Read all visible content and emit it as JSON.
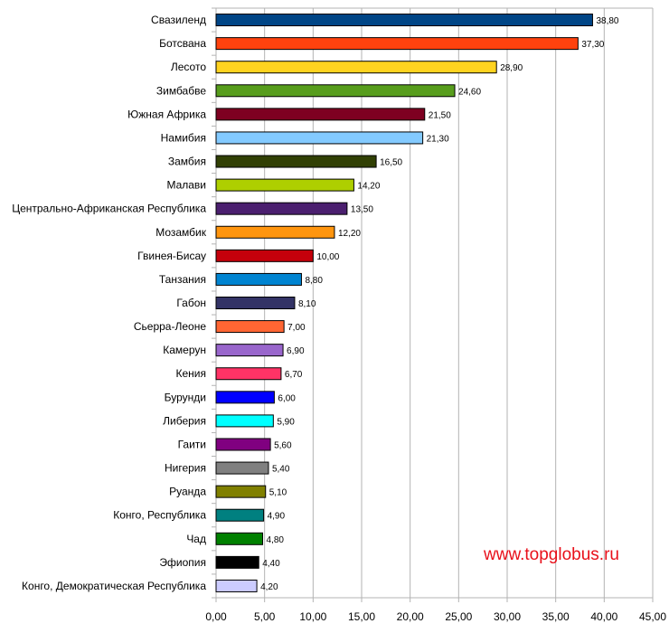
{
  "chart_data": {
    "type": "bar",
    "orientation": "horizontal",
    "title": "",
    "xlabel": "",
    "ylabel": "",
    "xlim": [
      0,
      45
    ],
    "x_ticks": [
      "0,00",
      "5,00",
      "10,00",
      "15,00",
      "20,00",
      "25,00",
      "30,00",
      "35,00",
      "40,00",
      "45,00"
    ],
    "grid": true,
    "categories": [
      "Свазиленд",
      "Ботсвана",
      "Лесото",
      "Зимбабве",
      "Южная Африка",
      "Намибия",
      "Замбия",
      "Малави",
      "Центрально-Африканская Республика",
      "Мозамбик",
      "Гвинея-Бисау",
      "Танзания",
      "Габон",
      "Сьерра-Леоне",
      "Камерун",
      "Кения",
      "Бурунди",
      "Либерия",
      "Гаити",
      "Нигерия",
      "Руанда",
      "Конго, Республика",
      "Чад",
      "Эфиопия",
      "Конго, Демократическая Республика"
    ],
    "values": [
      38.8,
      37.3,
      28.9,
      24.6,
      21.5,
      21.3,
      16.5,
      14.2,
      13.5,
      12.2,
      10.0,
      8.8,
      8.1,
      7.0,
      6.9,
      6.7,
      6.0,
      5.9,
      5.6,
      5.4,
      5.1,
      4.9,
      4.8,
      4.4,
      4.2
    ],
    "value_labels": [
      "38,80",
      "37,30",
      "28,90",
      "24,60",
      "21,50",
      "21,30",
      "16,50",
      "14,20",
      "13,50",
      "12,20",
      "10,00",
      "8,80",
      "8,10",
      "7,00",
      "6,90",
      "6,70",
      "6,00",
      "5,90",
      "5,60",
      "5,40",
      "5,10",
      "4,90",
      "4,80",
      "4,40",
      "4,20"
    ],
    "colors": [
      "#004586",
      "#ff420e",
      "#ffd320",
      "#579d1c",
      "#7e0021",
      "#83caff",
      "#314004",
      "#aecf00",
      "#4b1f6f",
      "#ff950e",
      "#c5000b",
      "#0084d1",
      "#333366",
      "#ff6633",
      "#9966cc",
      "#ff3366",
      "#0000ff",
      "#00ffff",
      "#800080",
      "#808080",
      "#808000",
      "#008080",
      "#008000",
      "#000000",
      "#ccccff"
    ],
    "watermark": "www.topglobus.ru"
  }
}
